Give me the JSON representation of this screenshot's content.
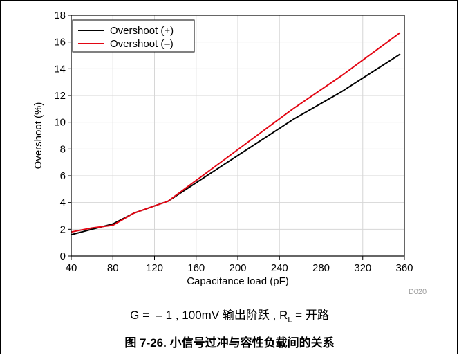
{
  "chart_data": {
    "type": "line",
    "xlabel": "Capacitance load (pF)",
    "ylabel": "Overshoot (%)",
    "xlim": [
      40,
      360
    ],
    "ylim": [
      0,
      18
    ],
    "x_ticks": [
      "40",
      "80",
      "120",
      "160",
      "200",
      "240",
      "280",
      "320",
      "360"
    ],
    "y_ticks": [
      "0",
      "2",
      "4",
      "6",
      "8",
      "10",
      "12",
      "14",
      "16",
      "18"
    ],
    "grid": true,
    "legend_position": "top-left",
    "code": "D020",
    "series": [
      {
        "name": "Overshoot (+)",
        "color": "#000000",
        "x": [
          40,
          60,
          80,
          100,
          133,
          180,
          253,
          300,
          356
        ],
        "y": [
          1.6,
          2.0,
          2.4,
          3.2,
          4.1,
          6.5,
          10.2,
          12.3,
          15.1
        ]
      },
      {
        "name": "Overshoot (–)",
        "color": "#e30613",
        "x": [
          40,
          60,
          80,
          100,
          133,
          180,
          253,
          300,
          356
        ],
        "y": [
          1.8,
          2.1,
          2.3,
          3.2,
          4.1,
          6.8,
          11.0,
          13.5,
          16.7
        ]
      }
    ]
  },
  "caption": {
    "prefix": "G =  – 1 , 100mV 输出阶跃 , R",
    "subscript": "L",
    "suffix": " = 开路"
  },
  "figure_title": "图 7-26. 小信号过冲与容性负载间的关系"
}
